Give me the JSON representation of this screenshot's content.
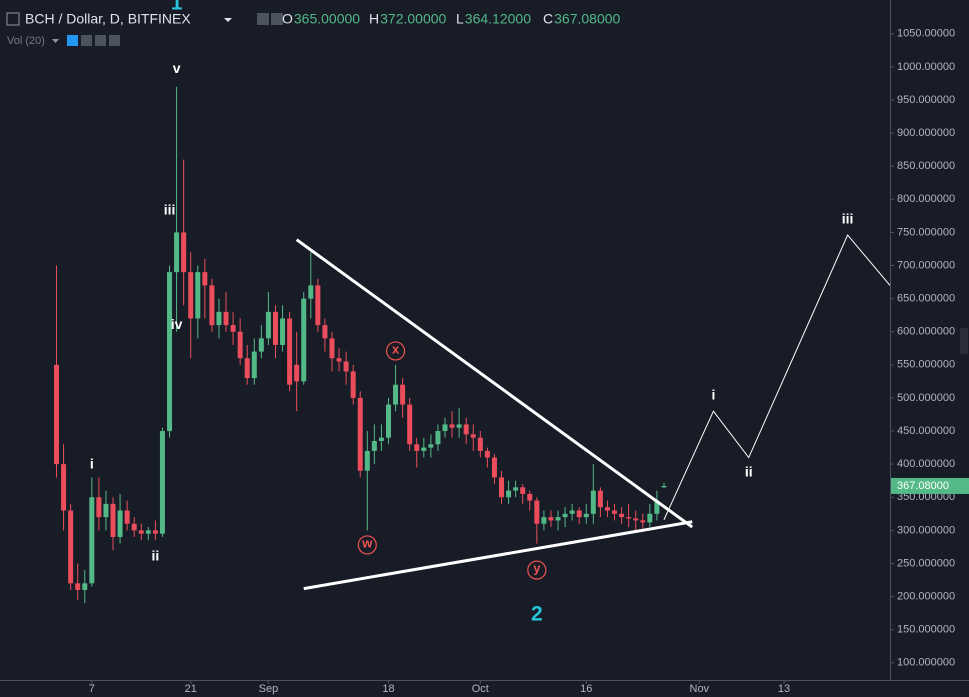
{
  "chart_data": {
    "type": "candlestick",
    "title": "BCH / Dollar, D, BITFINEX",
    "ohlc_header": [
      {
        "prefix": "O",
        "value": "365.00000"
      },
      {
        "prefix": "H",
        "value": "372.00000"
      },
      {
        "prefix": "L",
        "value": "364.12000"
      },
      {
        "prefix": "C",
        "value": "367.08000"
      }
    ],
    "volume_label": "Vol (20)",
    "up_color": "#53b987",
    "down_color": "#eb4d5c",
    "x": [
      1,
      2,
      3,
      4,
      5,
      6,
      7,
      8,
      9,
      10,
      11,
      12,
      13,
      14,
      15,
      16,
      17,
      18,
      19,
      20,
      21,
      22,
      23,
      24,
      25,
      26,
      27,
      28,
      29,
      30,
      31,
      32,
      33,
      34,
      35,
      36,
      37,
      38,
      39,
      40,
      41,
      42,
      43,
      44,
      45,
      46,
      47,
      48,
      49,
      50,
      51,
      52,
      53,
      54,
      55,
      56,
      57,
      58,
      59,
      60,
      61,
      62,
      63,
      64,
      65,
      66,
      67,
      68,
      69,
      70,
      71,
      72,
      73,
      74,
      75,
      76,
      77,
      78,
      79,
      80,
      81,
      82,
      83,
      84,
      85,
      86,
      87
    ],
    "open": [
      550,
      400,
      330,
      220,
      210,
      220,
      350,
      320,
      340,
      290,
      330,
      310,
      300,
      295,
      300,
      295,
      450,
      690,
      750,
      690,
      620,
      690,
      670,
      610,
      630,
      610,
      600,
      560,
      530,
      570,
      590,
      630,
      580,
      620,
      550,
      525,
      650,
      670,
      610,
      590,
      560,
      555,
      540,
      500,
      390,
      420,
      435,
      440,
      490,
      520,
      490,
      430,
      420,
      425,
      430,
      450,
      460,
      455,
      460,
      445,
      440,
      420,
      410,
      380,
      350,
      360,
      365,
      355,
      345,
      310,
      320,
      315,
      320,
      325,
      330,
      320,
      325,
      360,
      335,
      330,
      325,
      320,
      318,
      315,
      312,
      325,
      365
    ],
    "high": [
      700,
      430,
      340,
      250,
      240,
      380,
      380,
      360,
      350,
      355,
      345,
      320,
      310,
      305,
      315,
      455,
      700,
      970,
      860,
      720,
      700,
      710,
      680,
      650,
      660,
      630,
      620,
      580,
      590,
      610,
      660,
      640,
      640,
      630,
      600,
      660,
      720,
      680,
      620,
      600,
      575,
      570,
      550,
      510,
      450,
      460,
      460,
      500,
      550,
      530,
      500,
      440,
      440,
      445,
      460,
      470,
      480,
      485,
      470,
      460,
      450,
      425,
      415,
      390,
      375,
      375,
      370,
      360,
      350,
      330,
      330,
      330,
      335,
      340,
      335,
      340,
      400,
      365,
      345,
      340,
      335,
      340,
      330,
      325,
      340,
      360,
      372
    ],
    "low": [
      380,
      300,
      210,
      195,
      190,
      215,
      300,
      300,
      270,
      280,
      300,
      290,
      285,
      285,
      285,
      290,
      440,
      600,
      640,
      560,
      590,
      620,
      600,
      590,
      600,
      580,
      550,
      520,
      520,
      560,
      580,
      560,
      570,
      510,
      480,
      520,
      620,
      600,
      570,
      540,
      540,
      520,
      490,
      380,
      300,
      400,
      420,
      430,
      480,
      470,
      420,
      395,
      410,
      410,
      420,
      440,
      440,
      440,
      430,
      420,
      410,
      395,
      370,
      340,
      340,
      350,
      340,
      330,
      280,
      300,
      305,
      300,
      305,
      315,
      310,
      310,
      310,
      320,
      320,
      315,
      310,
      305,
      300,
      300,
      305,
      315,
      364.12
    ],
    "close": [
      400,
      330,
      220,
      210,
      220,
      350,
      320,
      340,
      290,
      330,
      310,
      300,
      295,
      300,
      295,
      450,
      690,
      750,
      690,
      620,
      690,
      670,
      610,
      630,
      610,
      600,
      560,
      530,
      570,
      590,
      630,
      580,
      620,
      520,
      525,
      650,
      670,
      610,
      590,
      560,
      555,
      540,
      500,
      390,
      420,
      435,
      440,
      490,
      520,
      490,
      430,
      420,
      425,
      430,
      450,
      460,
      455,
      460,
      445,
      440,
      420,
      410,
      380,
      350,
      360,
      365,
      355,
      345,
      310,
      320,
      315,
      320,
      325,
      330,
      320,
      325,
      360,
      335,
      330,
      325,
      320,
      318,
      315,
      312,
      325,
      345,
      367.08
    ],
    "xlim": [
      -7,
      119
    ],
    "xticks": [
      {
        "value": 6,
        "label": "7"
      },
      {
        "value": 20,
        "label": "21"
      },
      {
        "value": 31,
        "label": "Sep"
      },
      {
        "value": 48,
        "label": "18"
      },
      {
        "value": 61,
        "label": "Oct"
      },
      {
        "value": 76,
        "label": "16"
      },
      {
        "value": 92,
        "label": "Nov"
      },
      {
        "value": 104,
        "label": "13"
      }
    ],
    "ylim": [
      74,
      1101
    ],
    "yticks": [
      {
        "value": 100,
        "label": "100.000000"
      },
      {
        "value": 150,
        "label": "150.000000"
      },
      {
        "value": 200,
        "label": "200.000000"
      },
      {
        "value": 250,
        "label": "250.000000"
      },
      {
        "value": 300,
        "label": "300.000000"
      },
      {
        "value": 350,
        "label": "350.000000"
      },
      {
        "value": 400,
        "label": "400.000000"
      },
      {
        "value": 450,
        "label": "450.000000"
      },
      {
        "value": 500,
        "label": "500.000000"
      },
      {
        "value": 550,
        "label": "550.000000"
      },
      {
        "value": 600,
        "label": "600.000000"
      },
      {
        "value": 650,
        "label": "650.000000"
      },
      {
        "value": 700,
        "label": "700.000000"
      },
      {
        "value": 750,
        "label": "750.000000"
      },
      {
        "value": 800,
        "label": "800.000000"
      },
      {
        "value": 850,
        "label": "850.000000"
      },
      {
        "value": 900,
        "label": "900.000000"
      },
      {
        "value": 950,
        "label": "950.000000"
      },
      {
        "value": 1000,
        "label": "1000.00000"
      },
      {
        "value": 1050,
        "label": "1050.00000"
      }
    ],
    "grid": false,
    "last_price": {
      "value": 367.08,
      "label": "367.08000"
    },
    "trendlines": [
      {
        "x": [
          35,
          91
        ],
        "values": [
          739,
          305
        ]
      },
      {
        "x": [
          36,
          91
        ],
        "values": [
          212,
          313
        ]
      }
    ],
    "projection": {
      "x": [
        87,
        94,
        99,
        113,
        119
      ],
      "values": [
        316,
        480,
        410,
        746,
        670
      ]
    },
    "annotations": [
      {
        "text": "1",
        "x": 18,
        "y": 1095,
        "style": "cyan"
      },
      {
        "text": "v",
        "x": 18,
        "y": 996,
        "style": "plain"
      },
      {
        "text": "iii",
        "x": 17,
        "y": 783,
        "style": "plain"
      },
      {
        "text": "iv",
        "x": 18,
        "y": 610,
        "style": "plain"
      },
      {
        "text": "i",
        "x": 6,
        "y": 399,
        "style": "plain"
      },
      {
        "text": "ii",
        "x": 15,
        "y": 260,
        "style": "plain"
      },
      {
        "text": "w",
        "x": 45,
        "y": 278,
        "style": "circled"
      },
      {
        "text": "x",
        "x": 49,
        "y": 571,
        "style": "circled"
      },
      {
        "text": "y",
        "x": 69,
        "y": 240,
        "style": "circled"
      },
      {
        "text": "2",
        "x": 69,
        "y": 172,
        "style": "cyan"
      },
      {
        "text": "i",
        "x": 94,
        "y": 503,
        "style": "plain"
      },
      {
        "text": "ii",
        "x": 99,
        "y": 387,
        "style": "plain"
      },
      {
        "text": "iii",
        "x": 113,
        "y": 769,
        "style": "plain"
      }
    ]
  }
}
